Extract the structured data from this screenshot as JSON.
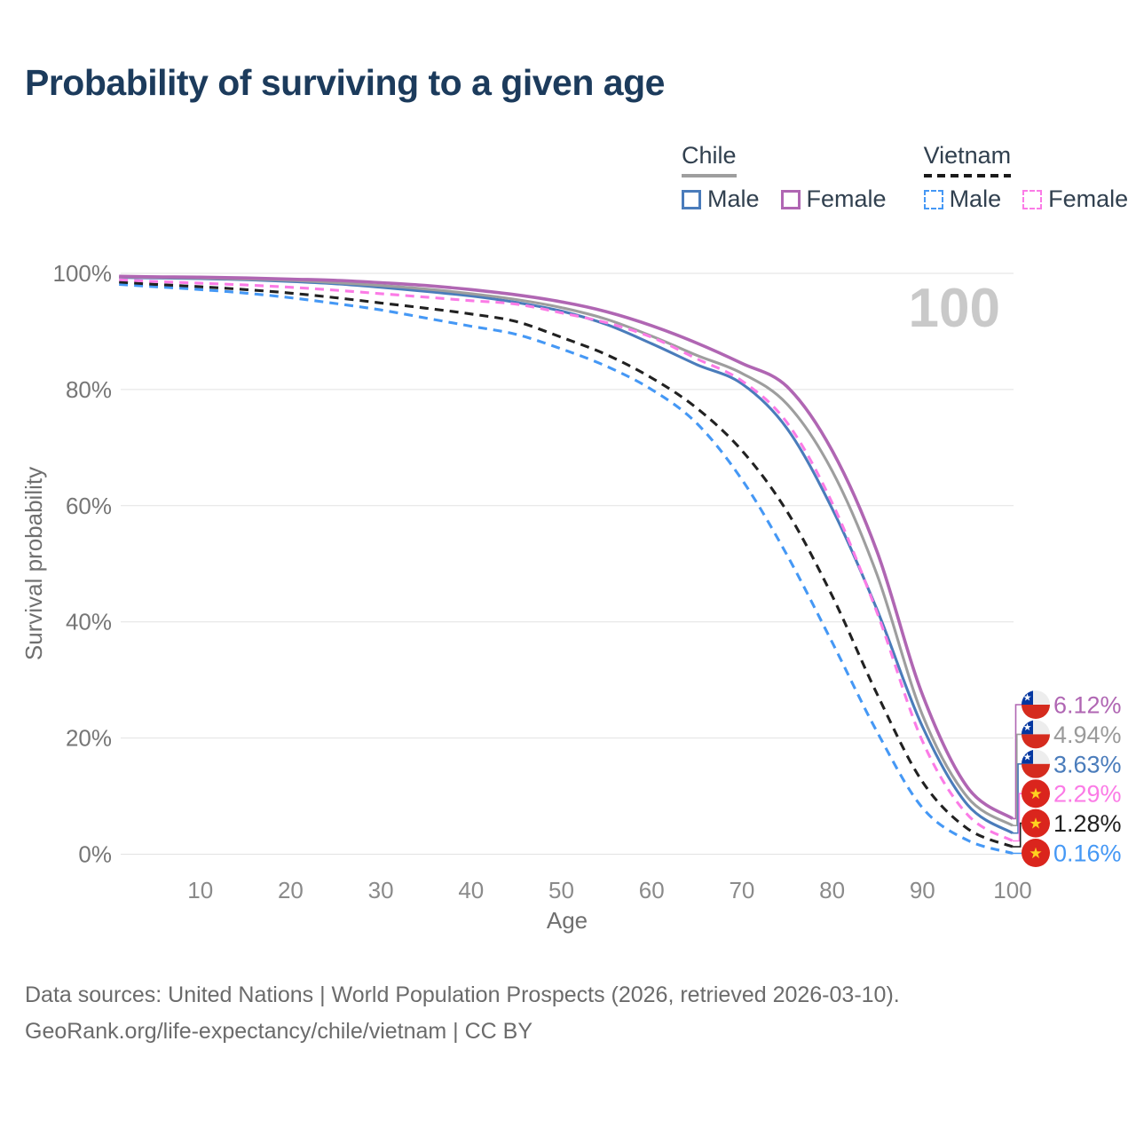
{
  "title": "Probability of surviving to a given age",
  "legend": {
    "groups": [
      {
        "label": "Chile",
        "line_style": "solid",
        "line_color": "#9e9e9e",
        "items": [
          {
            "label": "Male",
            "color": "#4a7cbb",
            "dashed": false
          },
          {
            "label": "Female",
            "color": "#b066b3",
            "dashed": false
          }
        ]
      },
      {
        "label": "Vietnam",
        "line_style": "dashed",
        "line_color": "#1a1a1a",
        "items": [
          {
            "label": "Male",
            "color": "#4598f5",
            "dashed": true
          },
          {
            "label": "Female",
            "color": "#fb7be6",
            "dashed": true
          }
        ]
      }
    ]
  },
  "chart_data": {
    "type": "line",
    "title": "Probability of surviving to a given age",
    "xlabel": "Age",
    "ylabel": "Survival probability",
    "xlim": [
      0,
      100
    ],
    "ylim": [
      0,
      100
    ],
    "x_ticks": [
      10,
      20,
      30,
      40,
      50,
      60,
      70,
      80,
      90,
      100
    ],
    "y_tick_values": [
      0,
      20,
      40,
      60,
      80,
      100
    ],
    "y_tick_suffix": "%",
    "grid": "horizontal",
    "legend_position": "top-right",
    "end_annotation": "100",
    "ages": [
      1,
      5,
      10,
      15,
      20,
      25,
      30,
      35,
      40,
      45,
      50,
      55,
      60,
      65,
      70,
      75,
      80,
      85,
      90,
      95,
      100
    ],
    "series": [
      {
        "name": "Chile Male",
        "group": "Chile",
        "sex": "Male",
        "color": "#4a7cbb",
        "dashed": false,
        "flag": "chile",
        "end_label": "3.63%",
        "values": [
          99.3,
          99.2,
          99.1,
          98.9,
          98.6,
          98.2,
          97.6,
          96.9,
          96.1,
          95.0,
          93.5,
          91.2,
          87.9,
          84.3,
          81.0,
          73.3,
          59.5,
          42.0,
          22.0,
          8.5,
          3.63
        ]
      },
      {
        "name": "Chile",
        "group": "Chile",
        "sex": "Both",
        "color": "#9e9e9e",
        "dashed": false,
        "flag": "chile",
        "end_label": "4.94%",
        "values": [
          99.4,
          99.3,
          99.2,
          99.0,
          98.8,
          98.4,
          97.9,
          97.3,
          96.5,
          95.5,
          94.1,
          92.1,
          89.2,
          85.9,
          82.8,
          77.5,
          66.0,
          48.0,
          24.0,
          9.8,
          4.94
        ]
      },
      {
        "name": "Chile Female",
        "group": "Chile",
        "sex": "Female",
        "color": "#b066b3",
        "dashed": false,
        "flag": "chile",
        "end_label": "6.12%",
        "values": [
          99.5,
          99.4,
          99.35,
          99.2,
          99.0,
          98.8,
          98.4,
          97.9,
          97.2,
          96.3,
          95.1,
          93.4,
          91.0,
          88.0,
          84.5,
          80.5,
          69.5,
          52.0,
          27.5,
          11.5,
          6.12
        ]
      },
      {
        "name": "Vietnam Male",
        "group": "Vietnam",
        "sex": "Male",
        "color": "#4598f5",
        "dashed": true,
        "flag": "vietnam",
        "end_label": "0.16%",
        "values": [
          98.1,
          97.7,
          97.2,
          96.6,
          95.8,
          94.8,
          93.7,
          92.3,
          90.9,
          89.5,
          87.0,
          84.0,
          80.0,
          74.2,
          64.5,
          51.5,
          36.5,
          21.0,
          8.0,
          2.4,
          0.16
        ]
      },
      {
        "name": "Vietnam",
        "group": "Vietnam",
        "sex": "Both",
        "color": "#212121",
        "dashed": true,
        "flag": "vietnam",
        "end_label": "1.28%",
        "values": [
          98.5,
          98.1,
          97.7,
          97.2,
          96.6,
          95.8,
          94.9,
          94.0,
          93.0,
          91.7,
          89.0,
          86.0,
          82.0,
          76.8,
          69.5,
          59.0,
          44.5,
          27.5,
          12.5,
          4.4,
          1.28
        ]
      },
      {
        "name": "Vietnam Female",
        "group": "Vietnam",
        "sex": "Female",
        "color": "#fb7be6",
        "dashed": true,
        "flag": "vietnam",
        "end_label": "2.29%",
        "values": [
          98.9,
          98.6,
          98.3,
          98.0,
          97.6,
          97.1,
          96.5,
          95.9,
          95.3,
          94.7,
          93.2,
          91.5,
          89.0,
          85.3,
          81.5,
          74.3,
          60.5,
          41.5,
          19.5,
          6.8,
          2.29
        ]
      }
    ],
    "end_labels": [
      {
        "text": "6.12%",
        "series": "Chile Female",
        "flag": "chile",
        "color": "#b066b3"
      },
      {
        "text": "4.94%",
        "series": "Chile",
        "flag": "chile",
        "color": "#9a9a9a"
      },
      {
        "text": "3.63%",
        "series": "Chile Male",
        "flag": "chile",
        "color": "#4a7cbb"
      },
      {
        "text": "2.29%",
        "series": "Vietnam Female",
        "flag": "vietnam",
        "color": "#fb7be6"
      },
      {
        "text": "1.28%",
        "series": "Vietnam",
        "flag": "vietnam",
        "color": "#212121"
      },
      {
        "text": "0.16%",
        "series": "Vietnam Male",
        "flag": "vietnam",
        "color": "#4598f5"
      }
    ],
    "flag_colors": {
      "chile_blue": "#0437a0",
      "chile_red": "#d52b1e",
      "chile_white": "#ededed",
      "vietnam_red": "#da251d",
      "vietnam_yellow": "#ffd21f"
    }
  },
  "footer": {
    "line1": "Data sources: United Nations | World Population Prospects (2026, retrieved 2026-03-10).",
    "line2": "GeoRank.org/life-expectancy/chile/vietnam | CC BY"
  }
}
